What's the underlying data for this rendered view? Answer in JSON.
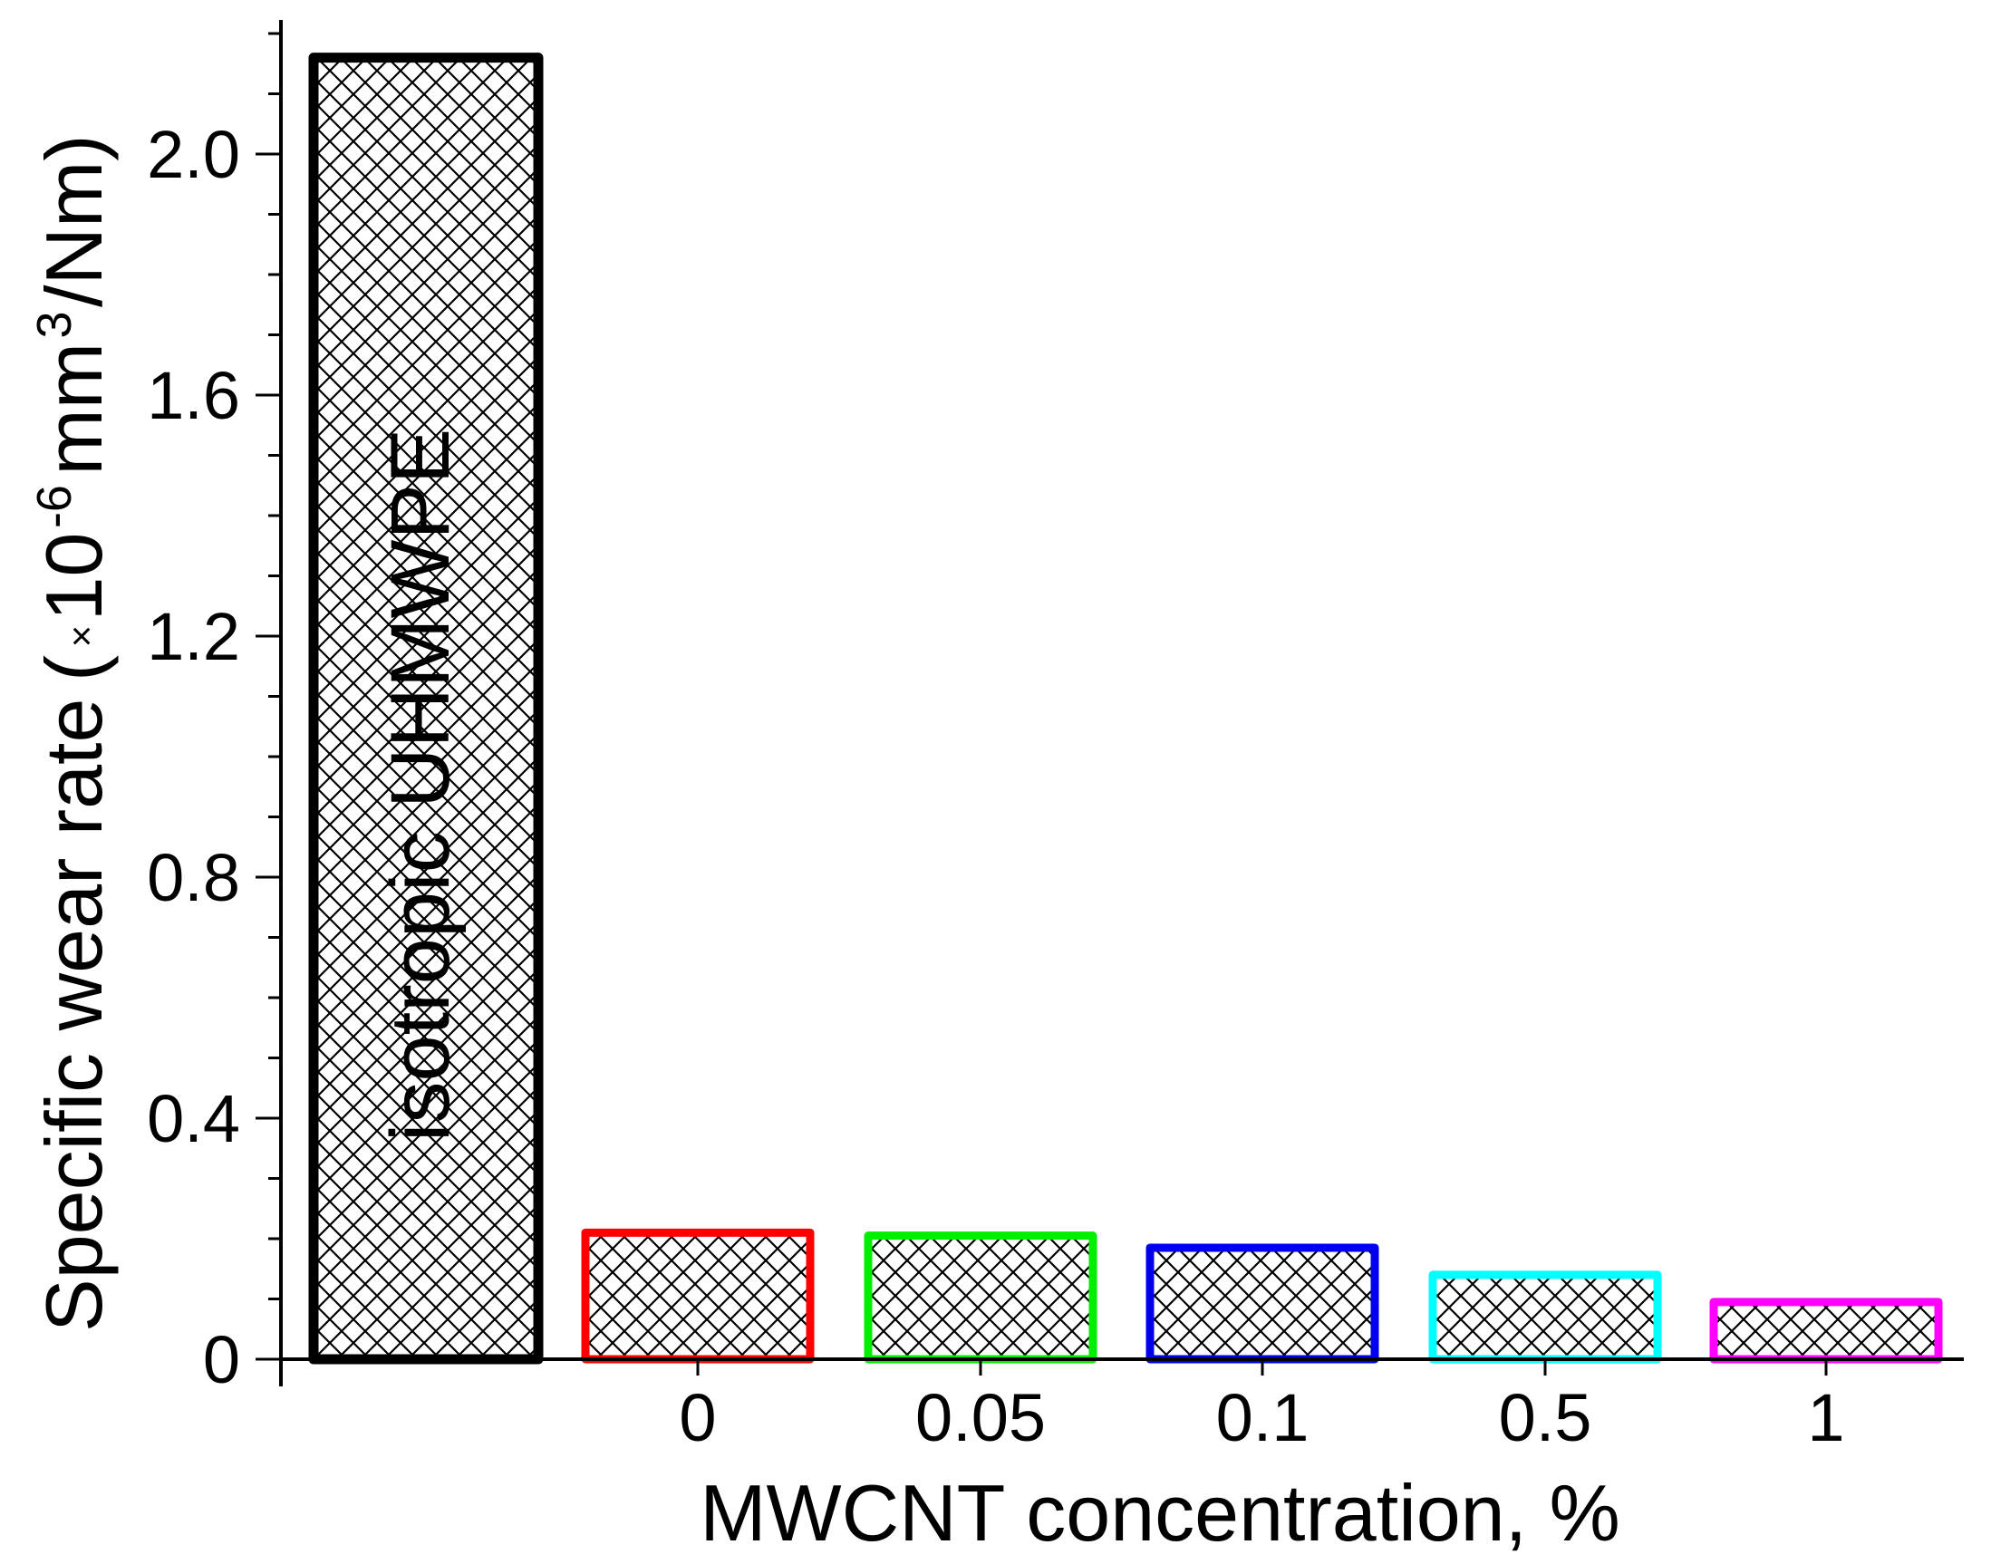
{
  "chart_data": {
    "type": "bar",
    "categories": [
      "",
      "0",
      "0.05",
      "0.1",
      "0.5",
      "1"
    ],
    "values": [
      2.16,
      0.21,
      0.205,
      0.185,
      0.14,
      0.095
    ],
    "bar_colors": [
      "#000000",
      "#ff0000",
      "#00ee00",
      "#0000ee",
      "#00ffff",
      "#ff00ff"
    ],
    "fill_pattern": "cross-hatch",
    "annotation": "isotropic UHMWPE",
    "xlabel": "MWCNT concentration, %",
    "ylabel": {
      "main": "Specific wear rate",
      "open_paren": "(",
      "times": "×",
      "base": "10",
      "exponent": "-6",
      "unit_a": "mm",
      "unit_exp": "3",
      "unit_b": "/Nm)"
    },
    "yticks": [
      "0",
      "0.4",
      "0.8",
      "1.2",
      "1.6",
      "2.0"
    ],
    "ytick_values": [
      0,
      0.4,
      0.8,
      1.2,
      1.6,
      2.0
    ],
    "ylim": [
      0,
      2.2
    ],
    "grid": false,
    "legend": "none"
  }
}
